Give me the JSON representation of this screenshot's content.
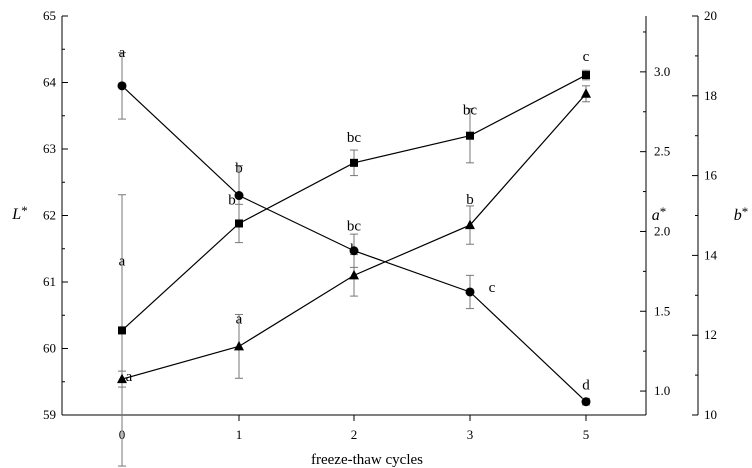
{
  "chart_data": {
    "type": "line",
    "title": "",
    "xlabel": "freeze-thaw cycles",
    "categories": [
      "0",
      "1",
      "2",
      "3",
      "5"
    ],
    "axes": {
      "left": {
        "label": "L*",
        "label_main": "L",
        "label_sup": "*",
        "ylim": [
          59,
          65
        ],
        "ticks": [
          59,
          60,
          61,
          62,
          63,
          64,
          65
        ]
      },
      "right_inner": {
        "label": "a*",
        "label_main": "a",
        "label_sup": "*",
        "ylim": [
          0.85,
          3.35
        ],
        "ticks": [
          "1.0",
          "1.5",
          "2.0",
          "2.5",
          "3.0"
        ]
      },
      "right_outer": {
        "label": "b*",
        "label_main": "b",
        "label_sup": "*",
        "ylim": [
          10,
          20
        ],
        "ticks": [
          10,
          12,
          14,
          16,
          18,
          20
        ]
      }
    },
    "series": [
      {
        "marker": "circle",
        "axis": "left",
        "values": [
          63.95,
          62.3,
          61.47,
          60.85,
          59.2
        ],
        "errors": [
          0.5,
          0.45,
          0.25,
          0.25,
          0.05
        ],
        "sig_labels": [
          "a",
          "b",
          "bc",
          "c",
          "d"
        ]
      },
      {
        "marker": "square",
        "axis": "right_inner",
        "values": [
          1.38,
          2.05,
          2.43,
          2.6,
          2.98
        ],
        "errors": [
          0.85,
          0.12,
          0.08,
          0.17,
          0.03
        ],
        "sig_labels": [
          "a",
          "b",
          "bc",
          "bc",
          "c"
        ]
      },
      {
        "marker": "triangle",
        "axis": "right_outer",
        "values": [
          10.9,
          11.72,
          13.5,
          14.76,
          18.05
        ],
        "errors": [
          0.2,
          0.8,
          0.52,
          0.48,
          0.2
        ],
        "sig_labels": [
          "a",
          "a",
          "b",
          "b",
          "c"
        ]
      }
    ],
    "grid": false
  }
}
